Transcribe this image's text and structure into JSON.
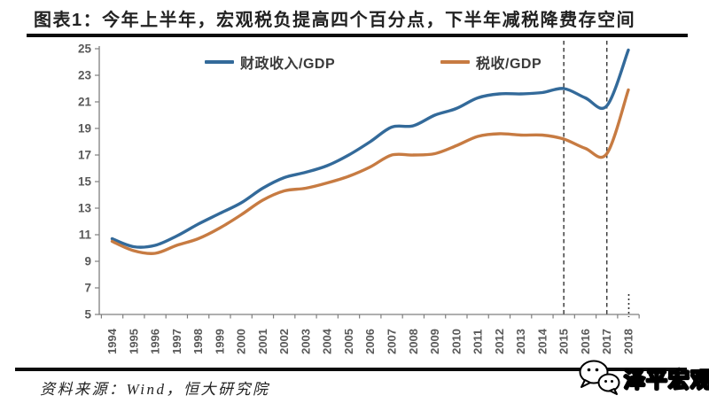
{
  "header": {
    "title": "图表1：今年上半年，宏观税负提高四个百分点，下半年减税降费存空间"
  },
  "footer": {
    "source": "资料来源：Wind，恒大研究院",
    "brand": "泽平宏观",
    "brand_icon": "wechat-bubbles-icon"
  },
  "chart_data": {
    "type": "line",
    "title": "",
    "xlabel": "",
    "ylabel": "",
    "ylim": [
      5,
      25
    ],
    "yticks": [
      5,
      7,
      9,
      11,
      13,
      15,
      17,
      19,
      21,
      23,
      25
    ],
    "grid": false,
    "legend_position": "top-inside",
    "categories": [
      "1994",
      "1995",
      "1996",
      "1997",
      "1998",
      "1999",
      "2000",
      "2001",
      "2002",
      "2003",
      "2004",
      "2005",
      "2006",
      "2007",
      "2008",
      "2009",
      "2010",
      "2011",
      "2012",
      "2013",
      "2014",
      "2015",
      "2016",
      "2017",
      "2018"
    ],
    "series": [
      {
        "name": "财政收入/GDP",
        "color": "#336A9A",
        "values": [
          10.7,
          10.1,
          10.2,
          10.9,
          11.8,
          12.6,
          13.4,
          14.5,
          15.3,
          15.7,
          16.2,
          17.0,
          18.0,
          19.1,
          19.2,
          20.0,
          20.5,
          21.3,
          21.6,
          21.6,
          21.7,
          22.0,
          21.3,
          20.7,
          24.9
        ]
      },
      {
        "name": "税收/GDP",
        "color": "#C77B42",
        "values": [
          10.5,
          9.8,
          9.6,
          10.2,
          10.7,
          11.5,
          12.5,
          13.6,
          14.3,
          14.5,
          14.9,
          15.4,
          16.1,
          17.0,
          17.0,
          17.1,
          17.7,
          18.4,
          18.6,
          18.5,
          18.5,
          18.2,
          17.5,
          17.1,
          21.9
        ]
      }
    ],
    "annotations": {
      "dashed_vline_years": [
        "2015",
        "2017"
      ],
      "dotted_axis_mark_year": "2018",
      "dashed_color": "#3f3f3f"
    }
  }
}
